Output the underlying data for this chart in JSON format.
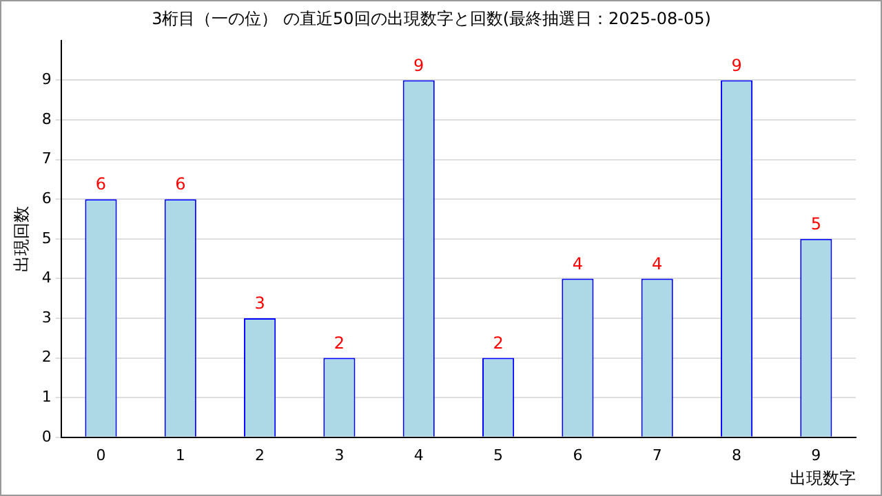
{
  "chart_data": {
    "type": "bar",
    "title": "3桁目（一の位） の直近50回の出現数字と回数(最終抽選日：2025-08-05)",
    "xlabel": "出現数字",
    "ylabel": "出現回数",
    "categories": [
      "0",
      "1",
      "2",
      "3",
      "4",
      "5",
      "6",
      "7",
      "8",
      "9"
    ],
    "values": [
      6,
      6,
      3,
      2,
      9,
      2,
      4,
      4,
      9,
      5
    ],
    "color": "#add8e6",
    "ylim": [
      0,
      10
    ],
    "yticks": [
      0,
      1,
      2,
      3,
      4,
      5,
      6,
      7,
      8,
      9
    ],
    "grid": "y",
    "data_labels": true,
    "legend": false
  }
}
